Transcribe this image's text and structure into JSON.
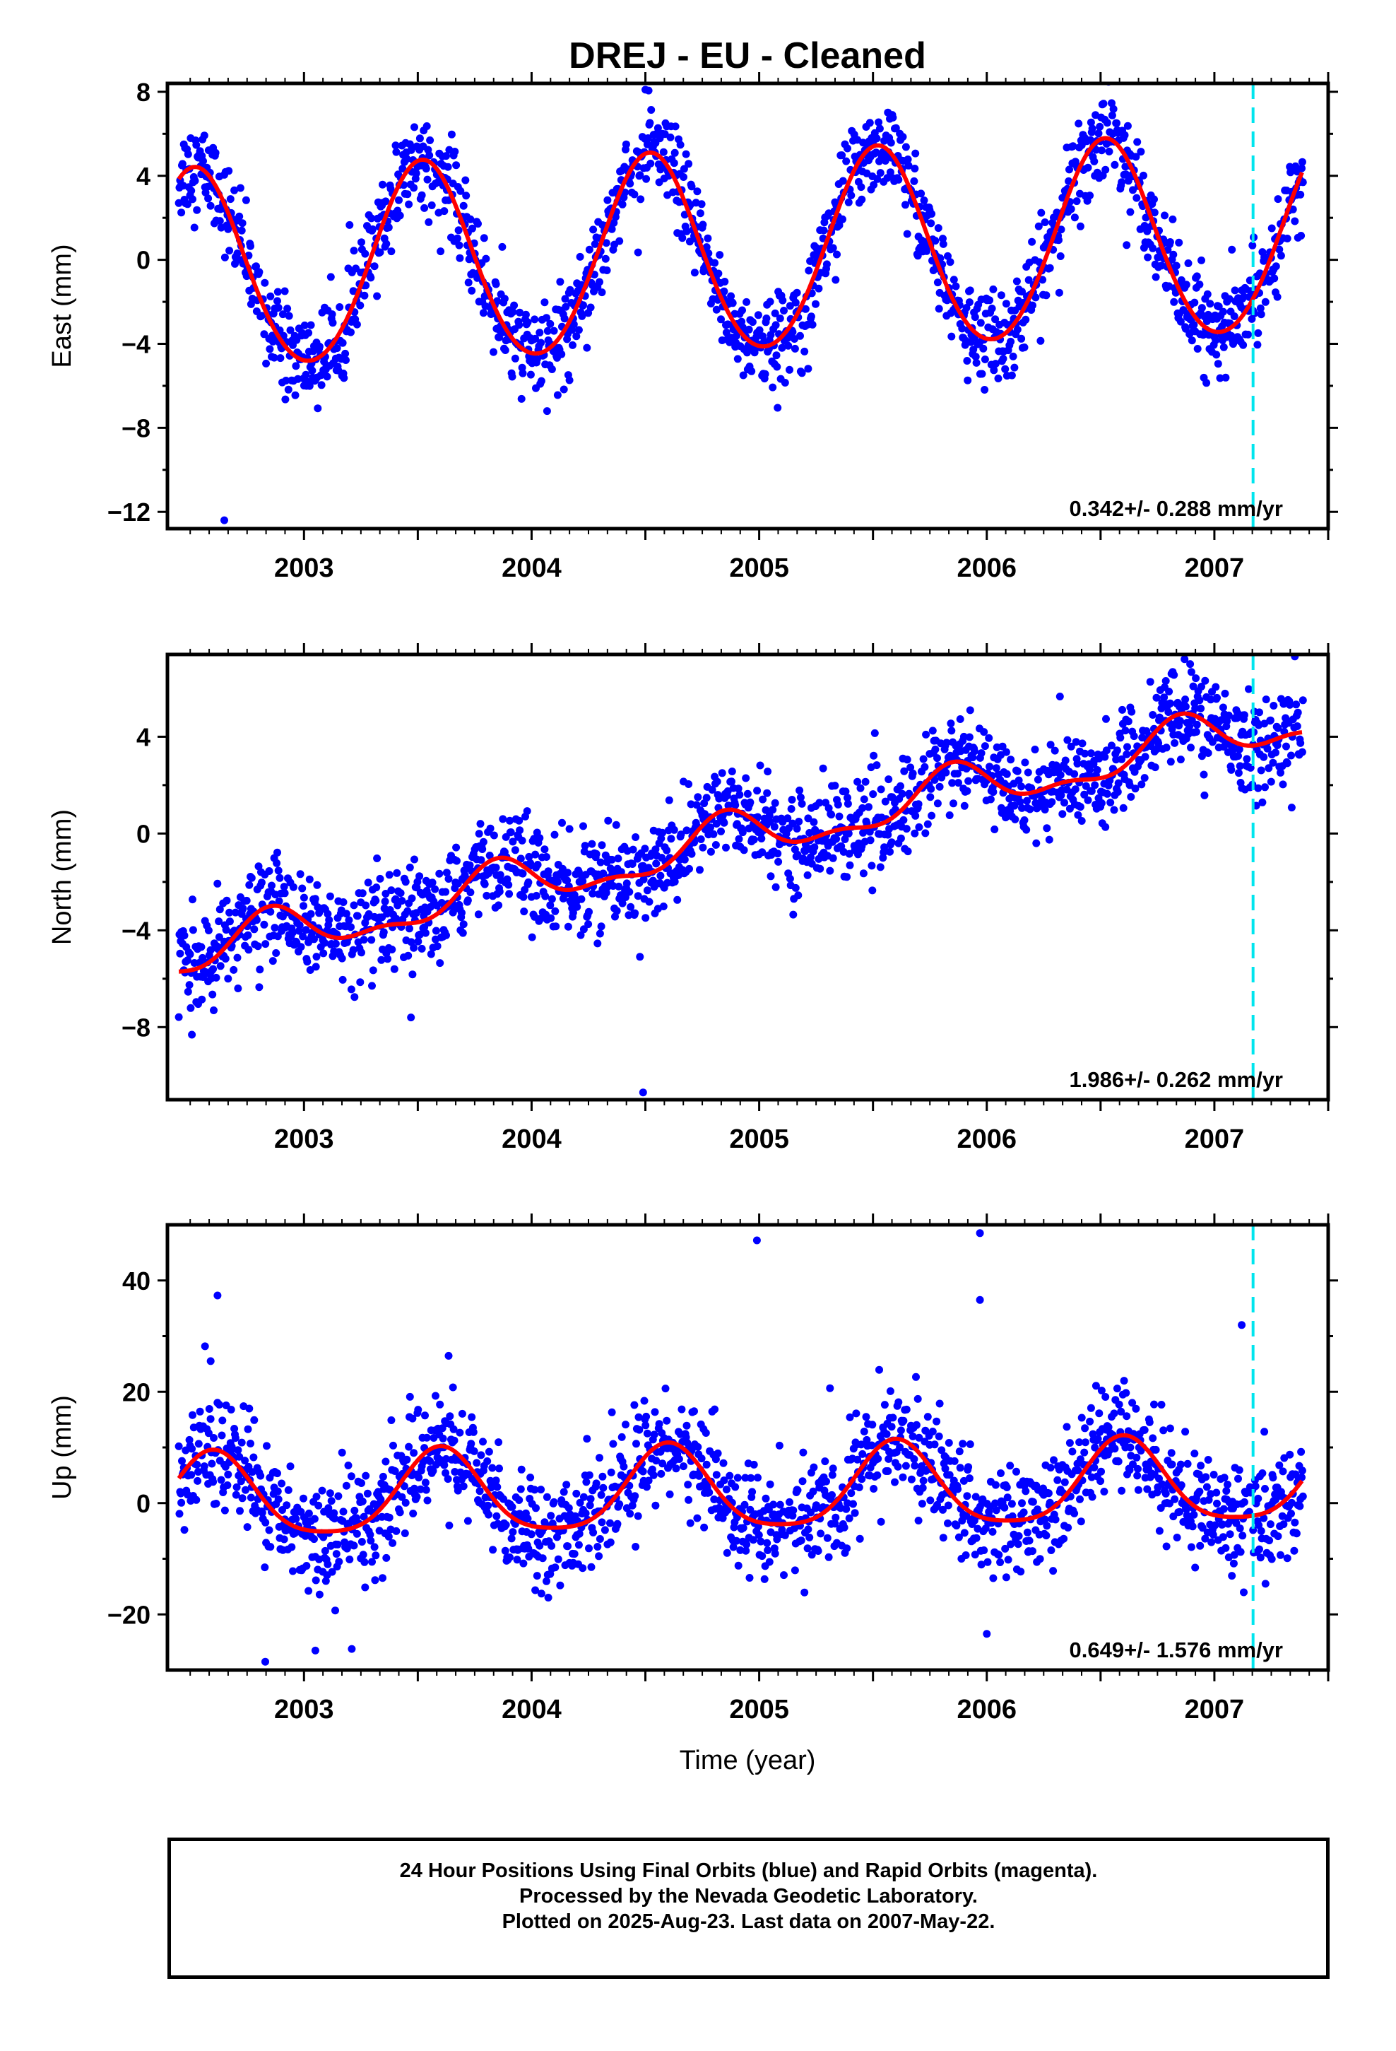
{
  "title": "DREJ  - EU - Cleaned",
  "xlabel": "Time (year)",
  "footer": {
    "line1": "24 Hour Positions Using Final Orbits (blue) and Rapid Orbits (magenta).",
    "line2": "Processed by the Nevada Geodetic Laboratory.",
    "line3": "Plotted on 2025-Aug-23. Last data on 2007-May-22."
  },
  "colors": {
    "points": "#0000ff",
    "model": "#ff0000",
    "event_line": "#00e5ee",
    "frame": "#000000"
  },
  "chart_data": [
    {
      "type": "scatter",
      "ylabel": "East (mm)",
      "rate_label": "0.342+/- 0.288 mm/yr",
      "xlim": [
        2002.4,
        2007.5
      ],
      "ylim": [
        -12.8,
        8.4
      ],
      "yticks": [
        -12,
        -8,
        -4,
        0,
        4,
        8
      ],
      "xticks": [
        2003,
        2004,
        2005,
        2006,
        2007
      ],
      "event_line_x": 2007.17,
      "model": {
        "offset": -0.6,
        "rate": 0.342,
        "amplitude": 4.7,
        "phase_peak": 0.52,
        "semi_amplitude": 0.3,
        "noise": 1.1
      },
      "outliers": [
        {
          "x": 2002.65,
          "y": -12.4
        },
        {
          "x": 2004.5,
          "y": 8.1
        }
      ]
    },
    {
      "type": "scatter",
      "ylabel": "North (mm)",
      "rate_label": "1.986+/- 0.262 mm/yr",
      "xlim": [
        2002.4,
        2007.5
      ],
      "ylim": [
        -11.0,
        7.4
      ],
      "yticks": [
        -8,
        -4,
        0,
        4
      ],
      "xticks": [
        2003,
        2004,
        2005,
        2006,
        2007
      ],
      "event_line_x": 2007.17,
      "model": {
        "offset": -5.1,
        "rate": 1.986,
        "amplitude": 0.9,
        "phase_peak": 0.85,
        "semi_amplitude": 0.4,
        "noise": 1.0
      },
      "outliers": [
        {
          "x": 2004.49,
          "y": -10.7
        },
        {
          "x": 2003.47,
          "y": -7.6
        }
      ]
    },
    {
      "type": "scatter",
      "ylabel": "Up (mm)",
      "rate_label": "0.649+/- 1.576 mm/yr",
      "xlim": [
        2002.4,
        2007.5
      ],
      "ylim": [
        -30,
        50
      ],
      "yticks": [
        -20,
        0,
        20,
        40
      ],
      "xticks": [
        2003,
        2004,
        2005,
        2006,
        2007
      ],
      "event_line_x": 2007.17,
      "model": {
        "offset": 0.5,
        "rate": 0.649,
        "amplitude": 7.5,
        "phase_peak": 0.6,
        "semi_amplitude": 1.5,
        "noise": 5.0
      },
      "outliers": [
        {
          "x": 2002.59,
          "y": 25.5
        },
        {
          "x": 2002.62,
          "y": 37.3
        },
        {
          "x": 2004.99,
          "y": 47.2
        },
        {
          "x": 2005.97,
          "y": 48.5
        },
        {
          "x": 2005.97,
          "y": 36.5
        },
        {
          "x": 2007.12,
          "y": 32.0
        },
        {
          "x": 2002.83,
          "y": -28.5
        },
        {
          "x": 2003.05,
          "y": -26.5
        },
        {
          "x": 2003.21,
          "y": -26.2
        },
        {
          "x": 2006.0,
          "y": -23.5
        }
      ]
    }
  ]
}
